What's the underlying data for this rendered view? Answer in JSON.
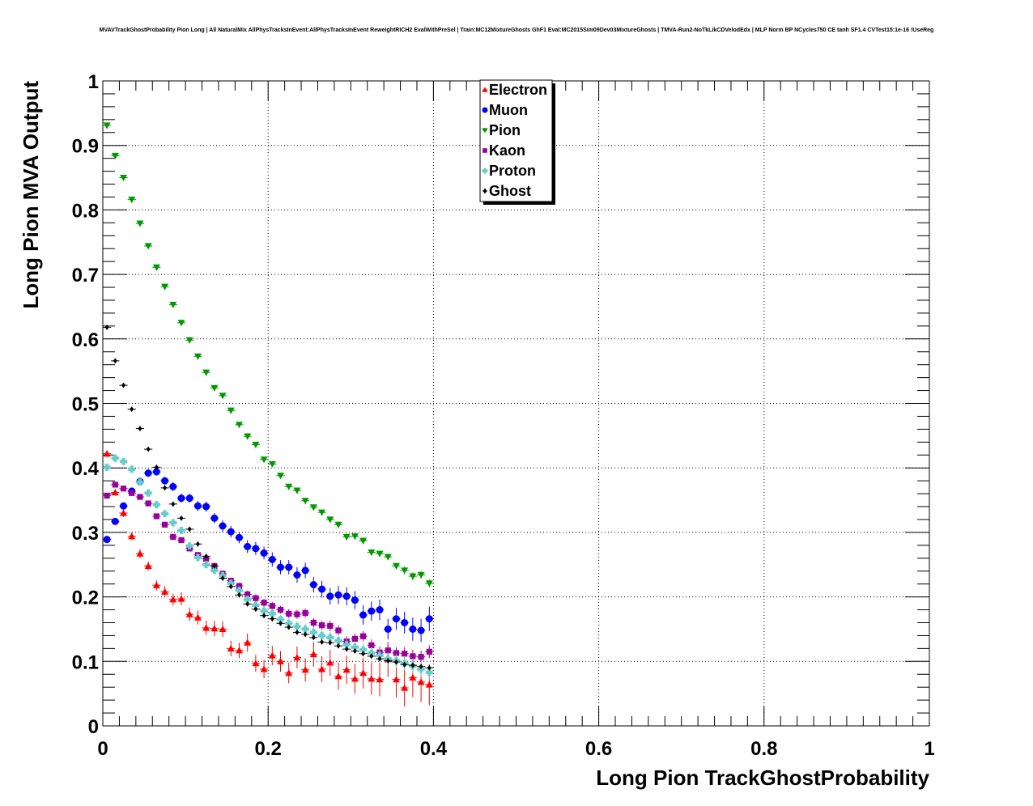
{
  "chart_data": {
    "type": "scatter",
    "title": "MVAVTrackGhostProbability Pion Long | All NaturalMix AllPhysTracksInEvent:AllPhysTracksInEvent ReweightRICH2 EvalWithPreSel | Train:MC12MixtureGhosts GhF1 Eval:MC2015Sim09Dev03MixtureGhosts | TMVA-Run2-NoTkLikCDVelodEdx | MLP Norm BP NCycles750 CE tanh SF1.4 CVTest15:1e-16 !UseReg",
    "xlabel": "Long Pion TrackGhostProbability",
    "ylabel": "Long Pion MVA Output",
    "xlim": [
      0,
      1
    ],
    "ylim": [
      0,
      1
    ],
    "grid": true,
    "legend_position": "top-center",
    "x_ticks": [
      "0",
      "0.2",
      "0.4",
      "0.6",
      "0.8",
      "1"
    ],
    "y_ticks": [
      "0",
      "0.1",
      "0.2",
      "0.3",
      "0.4",
      "0.5",
      "0.6",
      "0.7",
      "0.8",
      "0.9",
      "1"
    ],
    "x": [
      0.005,
      0.015,
      0.025,
      0.035,
      0.045,
      0.055,
      0.065,
      0.075,
      0.085,
      0.095,
      0.105,
      0.115,
      0.125,
      0.135,
      0.145,
      0.155,
      0.165,
      0.175,
      0.185,
      0.195,
      0.205,
      0.215,
      0.225,
      0.235,
      0.245,
      0.255,
      0.265,
      0.275,
      0.285,
      0.295,
      0.305,
      0.315,
      0.325,
      0.335,
      0.345,
      0.355,
      0.365,
      0.375,
      0.385,
      0.395
    ],
    "series": [
      {
        "name": "Electron",
        "color": "#ff0000",
        "marker": "triangle-up",
        "values": [
          0.422,
          0.362,
          0.33,
          0.294,
          0.267,
          0.248,
          0.218,
          0.208,
          0.196,
          0.197,
          0.173,
          0.168,
          0.152,
          0.151,
          0.15,
          0.12,
          0.117,
          0.129,
          0.097,
          0.088,
          0.109,
          0.1,
          0.082,
          0.106,
          0.087,
          0.111,
          0.088,
          0.098,
          0.077,
          0.087,
          0.073,
          0.082,
          0.073,
          0.072,
          0.103,
          0.072,
          0.059,
          0.075,
          0.068,
          0.064
        ],
        "errors": [
          0.005,
          0.005,
          0.006,
          0.006,
          0.007,
          0.007,
          0.008,
          0.009,
          0.009,
          0.01,
          0.01,
          0.011,
          0.011,
          0.012,
          0.012,
          0.012,
          0.012,
          0.014,
          0.013,
          0.014,
          0.015,
          0.016,
          0.016,
          0.017,
          0.018,
          0.019,
          0.02,
          0.02,
          0.021,
          0.022,
          0.023,
          0.024,
          0.025,
          0.026,
          0.027,
          0.028,
          0.029,
          0.03,
          0.031,
          0.032
        ]
      },
      {
        "name": "Muon",
        "color": "#0000ff",
        "marker": "circle",
        "values": [
          0.289,
          0.317,
          0.341,
          0.364,
          0.379,
          0.392,
          0.394,
          0.38,
          0.371,
          0.353,
          0.353,
          0.341,
          0.34,
          0.322,
          0.31,
          0.301,
          0.292,
          0.278,
          0.275,
          0.268,
          0.258,
          0.246,
          0.246,
          0.234,
          0.241,
          0.219,
          0.212,
          0.201,
          0.203,
          0.201,
          0.195,
          0.172,
          0.178,
          0.18,
          0.15,
          0.166,
          0.16,
          0.15,
          0.148,
          0.166
        ],
        "errors": [
          0.004,
          0.004,
          0.004,
          0.005,
          0.005,
          0.006,
          0.006,
          0.006,
          0.007,
          0.007,
          0.007,
          0.008,
          0.008,
          0.008,
          0.009,
          0.009,
          0.009,
          0.01,
          0.01,
          0.01,
          0.011,
          0.011,
          0.011,
          0.012,
          0.012,
          0.012,
          0.013,
          0.013,
          0.014,
          0.014,
          0.014,
          0.015,
          0.015,
          0.016,
          0.016,
          0.017,
          0.017,
          0.018,
          0.018,
          0.019
        ]
      },
      {
        "name": "Pion",
        "color": "#009900",
        "marker": "triangle-down",
        "values": [
          0.931,
          0.884,
          0.85,
          0.816,
          0.779,
          0.744,
          0.711,
          0.681,
          0.653,
          0.625,
          0.598,
          0.573,
          0.548,
          0.524,
          0.512,
          0.489,
          0.467,
          0.449,
          0.436,
          0.413,
          0.406,
          0.388,
          0.371,
          0.365,
          0.349,
          0.339,
          0.331,
          0.32,
          0.312,
          0.293,
          0.294,
          0.287,
          0.269,
          0.267,
          0.262,
          0.248,
          0.241,
          0.232,
          0.234,
          0.221
        ],
        "errors": [
          0.002,
          0.002,
          0.002,
          0.002,
          0.002,
          0.002,
          0.003,
          0.003,
          0.003,
          0.003,
          0.003,
          0.003,
          0.003,
          0.003,
          0.003,
          0.003,
          0.003,
          0.003,
          0.004,
          0.004,
          0.004,
          0.004,
          0.004,
          0.004,
          0.004,
          0.004,
          0.004,
          0.004,
          0.005,
          0.005,
          0.005,
          0.005,
          0.005,
          0.005,
          0.005,
          0.005,
          0.006,
          0.006,
          0.006,
          0.006
        ]
      },
      {
        "name": "Kaon",
        "color": "#990099",
        "marker": "square",
        "values": [
          0.357,
          0.374,
          0.368,
          0.361,
          0.355,
          0.345,
          0.325,
          0.312,
          0.293,
          0.288,
          0.275,
          0.265,
          0.259,
          0.248,
          0.236,
          0.225,
          0.217,
          0.204,
          0.198,
          0.191,
          0.186,
          0.18,
          0.174,
          0.173,
          0.175,
          0.16,
          0.156,
          0.155,
          0.148,
          0.131,
          0.135,
          0.139,
          0.125,
          0.114,
          0.117,
          0.113,
          0.112,
          0.108,
          0.107,
          0.115
        ],
        "errors": [
          0.003,
          0.003,
          0.003,
          0.003,
          0.003,
          0.003,
          0.004,
          0.004,
          0.004,
          0.004,
          0.004,
          0.004,
          0.005,
          0.005,
          0.005,
          0.005,
          0.005,
          0.006,
          0.006,
          0.006,
          0.006,
          0.006,
          0.007,
          0.007,
          0.007,
          0.007,
          0.007,
          0.008,
          0.008,
          0.008,
          0.008,
          0.008,
          0.009,
          0.009,
          0.009,
          0.009,
          0.01,
          0.01,
          0.01,
          0.01
        ]
      },
      {
        "name": "Proton",
        "color": "#66cccc",
        "marker": "cross",
        "values": [
          0.401,
          0.415,
          0.41,
          0.398,
          0.378,
          0.361,
          0.343,
          0.329,
          0.315,
          0.303,
          0.279,
          0.261,
          0.25,
          0.241,
          0.233,
          0.221,
          0.21,
          0.196,
          0.187,
          0.178,
          0.174,
          0.165,
          0.159,
          0.154,
          0.15,
          0.145,
          0.14,
          0.137,
          0.132,
          0.126,
          0.122,
          0.118,
          0.113,
          0.109,
          0.104,
          0.101,
          0.097,
          0.093,
          0.088,
          0.083
        ],
        "errors": [
          0.003,
          0.003,
          0.003,
          0.003,
          0.004,
          0.004,
          0.004,
          0.004,
          0.004,
          0.005,
          0.005,
          0.005,
          0.005,
          0.005,
          0.006,
          0.006,
          0.006,
          0.006,
          0.006,
          0.007,
          0.007,
          0.007,
          0.007,
          0.008,
          0.008,
          0.008,
          0.008,
          0.009,
          0.009,
          0.009,
          0.009,
          0.01,
          0.01,
          0.01,
          0.01,
          0.011,
          0.011,
          0.011,
          0.012,
          0.012
        ]
      },
      {
        "name": "Ghost",
        "color": "#000000",
        "marker": "diamond",
        "values": [
          0.618,
          0.566,
          0.528,
          0.491,
          0.461,
          0.429,
          0.401,
          0.369,
          0.344,
          0.322,
          0.305,
          0.282,
          0.263,
          0.248,
          0.229,
          0.216,
          0.203,
          0.189,
          0.181,
          0.171,
          0.166,
          0.159,
          0.153,
          0.145,
          0.142,
          0.137,
          0.13,
          0.129,
          0.124,
          0.119,
          0.116,
          0.112,
          0.108,
          0.104,
          0.101,
          0.099,
          0.095,
          0.094,
          0.092,
          0.09
        ],
        "errors": [
          0.002,
          0.002,
          0.002,
          0.002,
          0.002,
          0.002,
          0.002,
          0.002,
          0.002,
          0.002,
          0.002,
          0.002,
          0.002,
          0.002,
          0.002,
          0.002,
          0.002,
          0.002,
          0.002,
          0.002,
          0.002,
          0.002,
          0.002,
          0.002,
          0.002,
          0.002,
          0.002,
          0.002,
          0.002,
          0.002,
          0.002,
          0.002,
          0.002,
          0.002,
          0.002,
          0.002,
          0.002,
          0.002,
          0.002,
          0.002
        ]
      }
    ]
  }
}
